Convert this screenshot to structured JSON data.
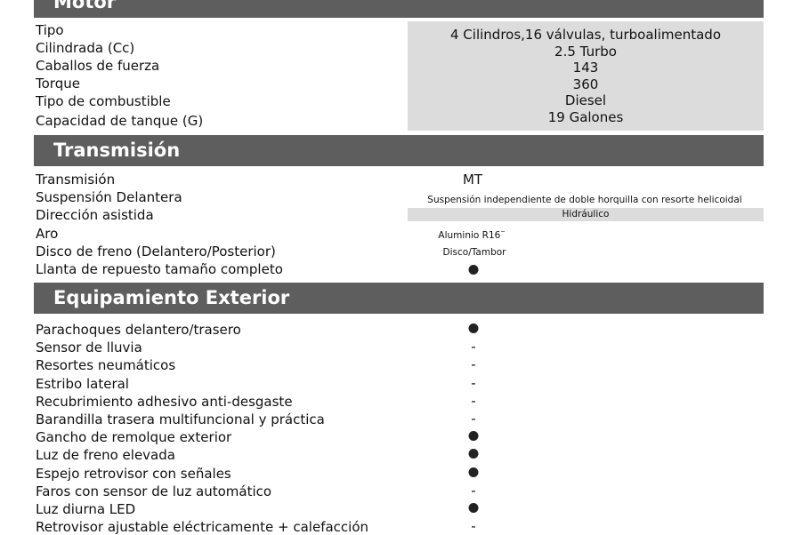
{
  "motor": {
    "title": "Motor",
    "rows": [
      {
        "label": "Tipo",
        "value": "4 Cilindros,16 válvulas, turboalimentado"
      },
      {
        "label": "Cilindrada (Cc)",
        "value": "2.5 Turbo"
      },
      {
        "label": "Caballos de fuerza",
        "value": "143"
      },
      {
        "label": "Torque",
        "value": "360"
      },
      {
        "label": "Tipo de combustible",
        "value": "Diesel"
      },
      {
        "label": "Capacidad de tanque (G)",
        "value": "19 Galones"
      }
    ]
  },
  "transmision": {
    "title": "Transmisión",
    "rows": [
      {
        "label": "Transmisión",
        "value": "MT"
      },
      {
        "label": "Suspensión Delantera",
        "value": "Suspensión independiente de doble horquilla con resorte helicoidal"
      },
      {
        "label": "Dirección asistida",
        "value": "Hidráulico"
      },
      {
        "label": "Aro",
        "value": "Aluminio R16¨"
      },
      {
        "label": "Disco de freno (Delantero/Posterior)",
        "value": "Disco/Tambor"
      },
      {
        "label": "Llanta de repuesto tamaño completo",
        "value": "dot"
      }
    ]
  },
  "exterior": {
    "title": "Equipamiento Exterior",
    "rows": [
      {
        "label": "Parachoques delantero/trasero",
        "value": "dot"
      },
      {
        "label": "Sensor de lluvia",
        "value": "-"
      },
      {
        "label": "Resortes neumáticos",
        "value": "-"
      },
      {
        "label": "Estribo lateral",
        "value": "-"
      },
      {
        "label": "Recubrimiento adhesivo anti-desgaste",
        "value": "-"
      },
      {
        "label": "Barandilla trasera multifuncional y práctica",
        "value": "-"
      },
      {
        "label": "Gancho de remolque exterior",
        "value": "dot"
      },
      {
        "label": "Luz de freno elevada",
        "value": "dot"
      },
      {
        "label": "Espejo retrovisor con señales",
        "value": "dot"
      },
      {
        "label": "Faros con sensor de luz automático",
        "value": "-"
      },
      {
        "label": "Luz diurna LED",
        "value": "dot"
      },
      {
        "label": "Retrovisor ajustable eléctricamente + calefacción",
        "value": "-"
      }
    ]
  }
}
